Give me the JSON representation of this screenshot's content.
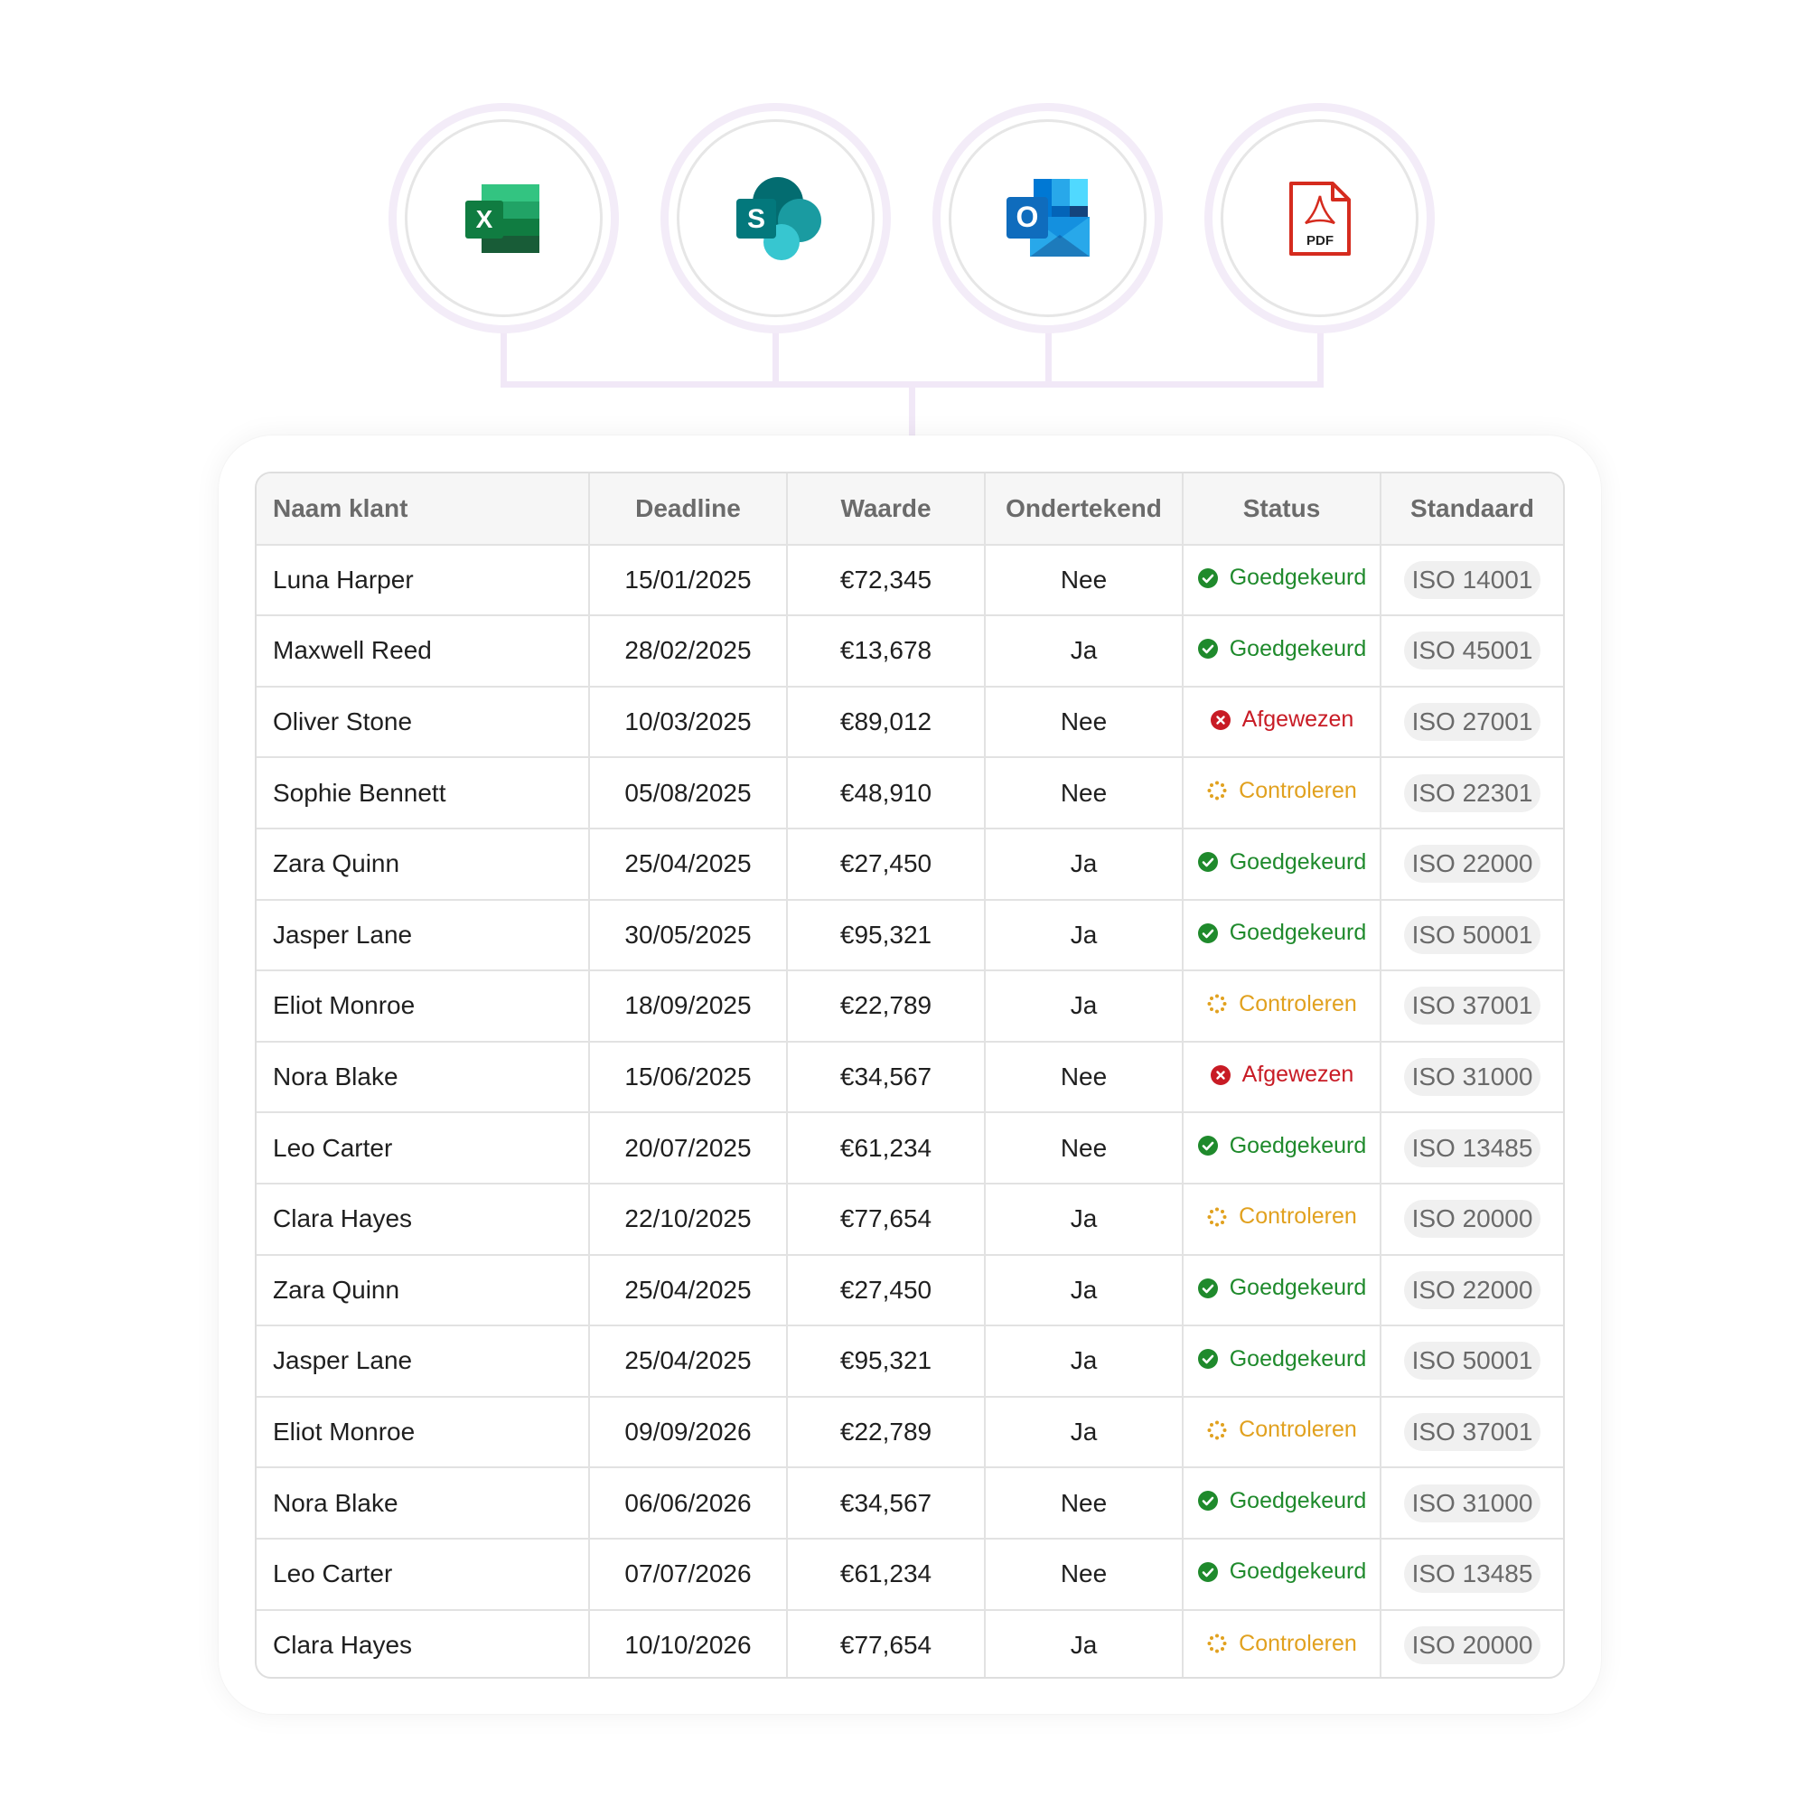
{
  "integrations": [
    {
      "name": "excel-icon",
      "letter": "X",
      "color": "#1d6f42"
    },
    {
      "name": "sharepoint-icon",
      "letter": "S",
      "color": "#037c7a"
    },
    {
      "name": "outlook-icon",
      "letter": "O",
      "color": "#0f6cbd"
    },
    {
      "name": "pdf-icon",
      "label": "PDF",
      "color": "#d52b1e"
    }
  ],
  "table": {
    "headers": [
      "Naam klant",
      "Deadline",
      "Waarde",
      "Ondertekend",
      "Status",
      "Standaard"
    ],
    "rows": [
      {
        "name": "Luna Harper",
        "deadline": "15/01/2025",
        "value": "€72,345",
        "signed": "Nee",
        "status": "Goedgekeurd",
        "status_type": "approved",
        "standard": "ISO 14001"
      },
      {
        "name": "Maxwell Reed",
        "deadline": "28/02/2025",
        "value": "€13,678",
        "signed": "Ja",
        "status": "Goedgekeurd",
        "status_type": "approved",
        "standard": "ISO 45001"
      },
      {
        "name": "Oliver Stone",
        "deadline": "10/03/2025",
        "value": "€89,012",
        "signed": "Nee",
        "status": "Afgewezen",
        "status_type": "rejected",
        "standard": "ISO 27001"
      },
      {
        "name": "Sophie Bennett",
        "deadline": "05/08/2025",
        "value": "€48,910",
        "signed": "Nee",
        "status": "Controleren",
        "status_type": "review",
        "standard": "ISO 22301"
      },
      {
        "name": "Zara Quinn",
        "deadline": "25/04/2025",
        "value": "€27,450",
        "signed": "Ja",
        "status": "Goedgekeurd",
        "status_type": "approved",
        "standard": "ISO 22000"
      },
      {
        "name": "Jasper Lane",
        "deadline": "30/05/2025",
        "value": "€95,321",
        "signed": "Ja",
        "status": "Goedgekeurd",
        "status_type": "approved",
        "standard": "ISO 50001"
      },
      {
        "name": "Eliot Monroe",
        "deadline": "18/09/2025",
        "value": "€22,789",
        "signed": "Ja",
        "status": "Controleren",
        "status_type": "review",
        "standard": "ISO 37001"
      },
      {
        "name": "Nora Blake",
        "deadline": "15/06/2025",
        "value": "€34,567",
        "signed": "Nee",
        "status": "Afgewezen",
        "status_type": "rejected",
        "standard": "ISO 31000"
      },
      {
        "name": "Leo Carter",
        "deadline": "20/07/2025",
        "value": "€61,234",
        "signed": "Nee",
        "status": "Goedgekeurd",
        "status_type": "approved",
        "standard": "ISO 13485"
      },
      {
        "name": "Clara Hayes",
        "deadline": "22/10/2025",
        "value": "€77,654",
        "signed": "Ja",
        "status": "Controleren",
        "status_type": "review",
        "standard": "ISO 20000"
      },
      {
        "name": "Zara Quinn",
        "deadline": "25/04/2025",
        "value": "€27,450",
        "signed": "Ja",
        "status": "Goedgekeurd",
        "status_type": "approved",
        "standard": "ISO 22000"
      },
      {
        "name": "Jasper Lane",
        "deadline": "25/04/2025",
        "value": "€95,321",
        "signed": "Ja",
        "status": "Goedgekeurd",
        "status_type": "approved",
        "standard": "ISO 50001"
      },
      {
        "name": "Eliot Monroe",
        "deadline": "09/09/2026",
        "value": "€22,789",
        "signed": "Ja",
        "status": "Controleren",
        "status_type": "review",
        "standard": "ISO 37001"
      },
      {
        "name": "Nora Blake",
        "deadline": "06/06/2026",
        "value": "€34,567",
        "signed": "Nee",
        "status": "Goedgekeurd",
        "status_type": "approved",
        "standard": "ISO 31000"
      },
      {
        "name": "Leo Carter",
        "deadline": "07/07/2026",
        "value": "€61,234",
        "signed": "Nee",
        "status": "Goedgekeurd",
        "status_type": "approved",
        "standard": "ISO 13485"
      },
      {
        "name": "Clara Hayes",
        "deadline": "10/10/2026",
        "value": "€77,654",
        "signed": "Ja",
        "status": "Controleren",
        "status_type": "review",
        "standard": "ISO 20000"
      }
    ]
  },
  "colors": {
    "approved": "#1f8a2c",
    "rejected": "#c81b25",
    "review": "#e1a11f"
  }
}
